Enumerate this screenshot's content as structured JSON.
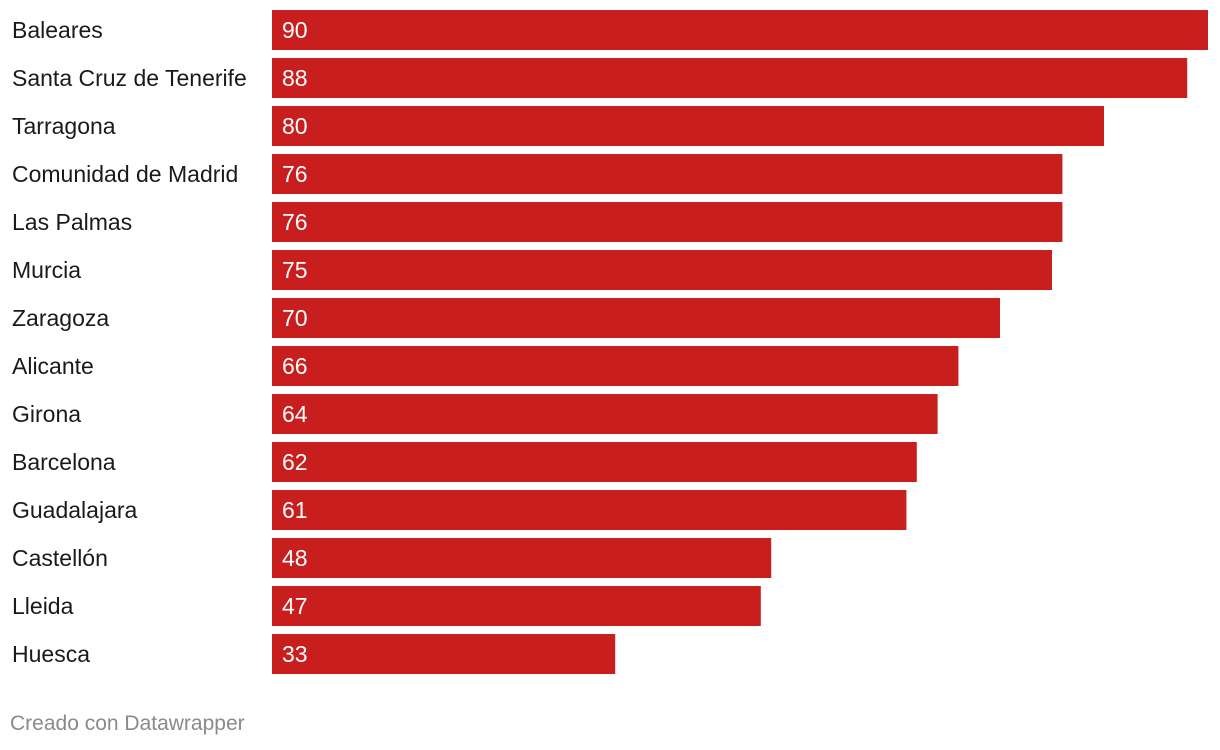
{
  "chart_data": {
    "type": "bar",
    "orientation": "horizontal",
    "categories": [
      "Baleares",
      "Santa Cruz de Tenerife",
      "Tarragona",
      "Comunidad de Madrid",
      "Las Palmas",
      "Murcia",
      "Zaragoza",
      "Alicante",
      "Girona",
      "Barcelona",
      "Guadalajara",
      "Castellón",
      "Lleida",
      "Huesca"
    ],
    "values": [
      90,
      88,
      80,
      76,
      76,
      75,
      70,
      66,
      64,
      62,
      61,
      48,
      47,
      33
    ],
    "data_labels": true,
    "bar_color": "#c81e1e",
    "xlim": [
      0,
      90
    ],
    "grid": false,
    "legend": false
  },
  "footer": {
    "credit": "Creado con Datawrapper"
  }
}
